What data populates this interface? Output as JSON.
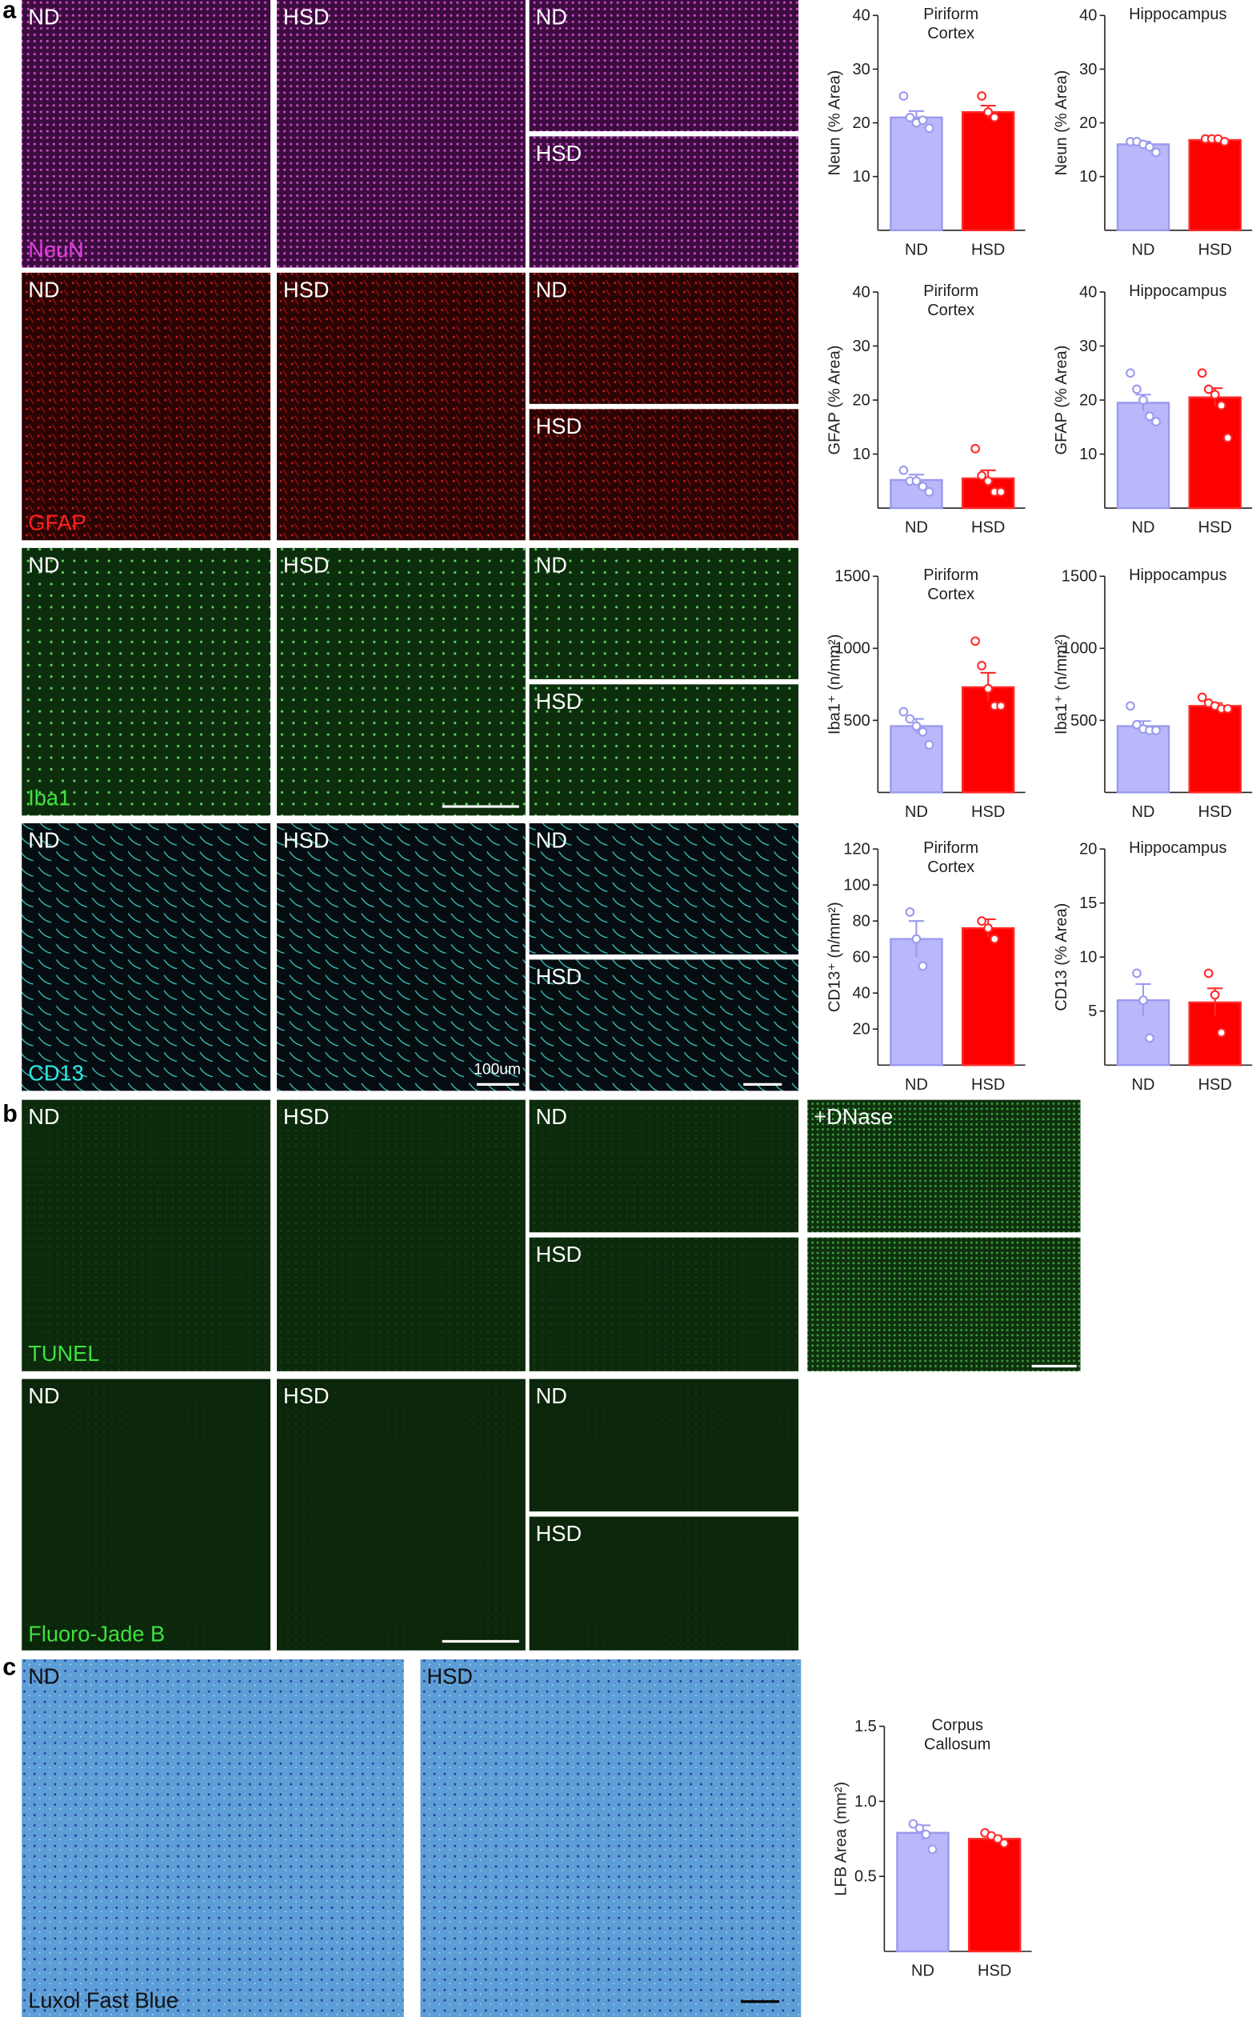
{
  "panel_labels": [
    "a",
    "b",
    "c"
  ],
  "image_labels": [
    "ND",
    "HSD",
    "ND",
    "HSD",
    "ND",
    "HSD",
    "ND",
    "HSD",
    "ND",
    "HSD",
    "ND",
    "HSD",
    "ND",
    "HSD",
    "ND",
    "HSD",
    "ND",
    "HSD",
    "ND",
    "HSD",
    "+DNase",
    "ND",
    "HSD",
    "ND",
    "HSD",
    "ND",
    "HSD"
  ],
  "stain_labels": [
    "NeuN",
    "GFAP",
    "Iba1",
    "CD13",
    "TUNEL",
    "Fluoro-Jade B",
    "Luxol Fast Blue"
  ],
  "scale_label": "100um",
  "chart_data": [
    {
      "type": "bar",
      "title": [
        "Piriform",
        "Cortex"
      ],
      "ylabel": "Neun (% Area)",
      "categories": [
        "ND",
        "HSD"
      ],
      "values": [
        21,
        22
      ],
      "errors": [
        1.2,
        1.2
      ],
      "points": [
        [
          25,
          21,
          20,
          20.5,
          19
        ],
        [
          25,
          22,
          21
        ]
      ],
      "colors": [
        "#b8b8fa",
        "#ff0000"
      ],
      "edge_colors": [
        "#9a9aee",
        "#ff2a2a"
      ],
      "ylim": [
        0,
        40
      ],
      "yticks": [
        10,
        20,
        30,
        40
      ]
    },
    {
      "type": "bar",
      "title": [
        "Hippocampus"
      ],
      "ylabel": "Neun (% Area)",
      "categories": [
        "ND",
        "HSD"
      ],
      "values": [
        16,
        16.8
      ],
      "errors": [
        0.5,
        0.2
      ],
      "points": [
        [
          16.5,
          16.5,
          16,
          15.5,
          14.5
        ],
        [
          17,
          17,
          17,
          16.5
        ]
      ],
      "colors": [
        "#b8b8fa",
        "#ff0000"
      ],
      "edge_colors": [
        "#9a9aee",
        "#ff2a2a"
      ],
      "ylim": [
        0,
        40
      ],
      "yticks": [
        10,
        20,
        30,
        40
      ]
    },
    {
      "type": "bar",
      "title": [
        "Piriform",
        "Cortex"
      ],
      "ylabel": "GFAP (% Area)",
      "categories": [
        "ND",
        "HSD"
      ],
      "values": [
        5.2,
        5.5
      ],
      "errors": [
        1,
        1.5
      ],
      "points": [
        [
          7,
          5,
          5,
          4,
          3
        ],
        [
          11,
          6,
          5,
          3,
          3
        ]
      ],
      "colors": [
        "#b8b8fa",
        "#ff0000"
      ],
      "edge_colors": [
        "#9a9aee",
        "#ff2a2a"
      ],
      "ylim": [
        0,
        40
      ],
      "yticks": [
        10,
        20,
        30,
        40
      ]
    },
    {
      "type": "bar",
      "title": [
        "Hippocampus"
      ],
      "ylabel": "GFAP (% Area)",
      "categories": [
        "ND",
        "HSD"
      ],
      "values": [
        19.5,
        20.5
      ],
      "errors": [
        1.5,
        1.7
      ],
      "points": [
        [
          25,
          22,
          20,
          17,
          16
        ],
        [
          25,
          22,
          21,
          19,
          13
        ]
      ],
      "colors": [
        "#b8b8fa",
        "#ff0000"
      ],
      "edge_colors": [
        "#9a9aee",
        "#ff2a2a"
      ],
      "ylim": [
        0,
        40
      ],
      "yticks": [
        10,
        20,
        30,
        40
      ]
    },
    {
      "type": "bar",
      "title": [
        "Piriform",
        "Cortex"
      ],
      "ylabel": "Iba1⁺ (n/mm²)",
      "categories": [
        "ND",
        "HSD"
      ],
      "values": [
        460,
        730
      ],
      "errors": [
        50,
        100
      ],
      "points": [
        [
          560,
          510,
          460,
          420,
          330
        ],
        [
          1050,
          880,
          720,
          600,
          600
        ]
      ],
      "colors": [
        "#b8b8fa",
        "#ff0000"
      ],
      "edge_colors": [
        "#9a9aee",
        "#ff2a2a"
      ],
      "ylim": [
        0,
        1500
      ],
      "yticks": [
        500,
        1000,
        1500
      ]
    },
    {
      "type": "bar",
      "title": [
        "Hippocampus"
      ],
      "ylabel": "Iba1⁺ (n/mm²)",
      "categories": [
        "ND",
        "HSD"
      ],
      "values": [
        460,
        600
      ],
      "errors": [
        35,
        20
      ],
      "points": [
        [
          600,
          470,
          440,
          430,
          430
        ],
        [
          660,
          620,
          600,
          580,
          580
        ]
      ],
      "colors": [
        "#b8b8fa",
        "#ff0000"
      ],
      "edge_colors": [
        "#9a9aee",
        "#ff2a2a"
      ],
      "ylim": [
        0,
        1500
      ],
      "yticks": [
        500,
        1000,
        1500
      ]
    },
    {
      "type": "bar",
      "title": [
        "Piriform",
        "Cortex"
      ],
      "ylabel": "CD13⁺ (n/mm²)",
      "categories": [
        "ND",
        "HSD"
      ],
      "values": [
        70,
        76
      ],
      "errors": [
        10,
        5
      ],
      "points": [
        [
          85,
          70,
          55
        ],
        [
          80,
          76,
          70
        ]
      ],
      "colors": [
        "#b8b8fa",
        "#ff0000"
      ],
      "edge_colors": [
        "#9a9aee",
        "#ff2a2a"
      ],
      "ylim": [
        0,
        120
      ],
      "yticks": [
        20,
        40,
        60,
        80,
        100,
        120
      ]
    },
    {
      "type": "bar",
      "title": [
        "Hippocampus"
      ],
      "ylabel": "CD13 (% Area)",
      "categories": [
        "ND",
        "HSD"
      ],
      "values": [
        6,
        5.8
      ],
      "errors": [
        1.5,
        1.3
      ],
      "points": [
        [
          8.5,
          6,
          2.5
        ],
        [
          8.5,
          6.5,
          3
        ]
      ],
      "colors": [
        "#b8b8fa",
        "#ff0000"
      ],
      "edge_colors": [
        "#9a9aee",
        "#ff2a2a"
      ],
      "ylim": [
        0,
        20
      ],
      "yticks": [
        5,
        10,
        15,
        20
      ]
    },
    {
      "type": "bar",
      "title": [
        "Corpus",
        "Callosum"
      ],
      "ylabel": "LFB Area (mm²)",
      "categories": [
        "ND",
        "HSD"
      ],
      "values": [
        0.79,
        0.75
      ],
      "errors": [
        0.05,
        0.02
      ],
      "points": [
        [
          0.85,
          0.82,
          0.78,
          0.68
        ],
        [
          0.79,
          0.77,
          0.75,
          0.72
        ]
      ],
      "colors": [
        "#b8b8fa",
        "#ff0000"
      ],
      "edge_colors": [
        "#9a9aee",
        "#ff2a2a"
      ],
      "ylim": [
        0,
        1.5
      ],
      "yticks": [
        0.5,
        {
          "value": 1,
          "label": "1.0"
        },
        1.5
      ]
    }
  ]
}
